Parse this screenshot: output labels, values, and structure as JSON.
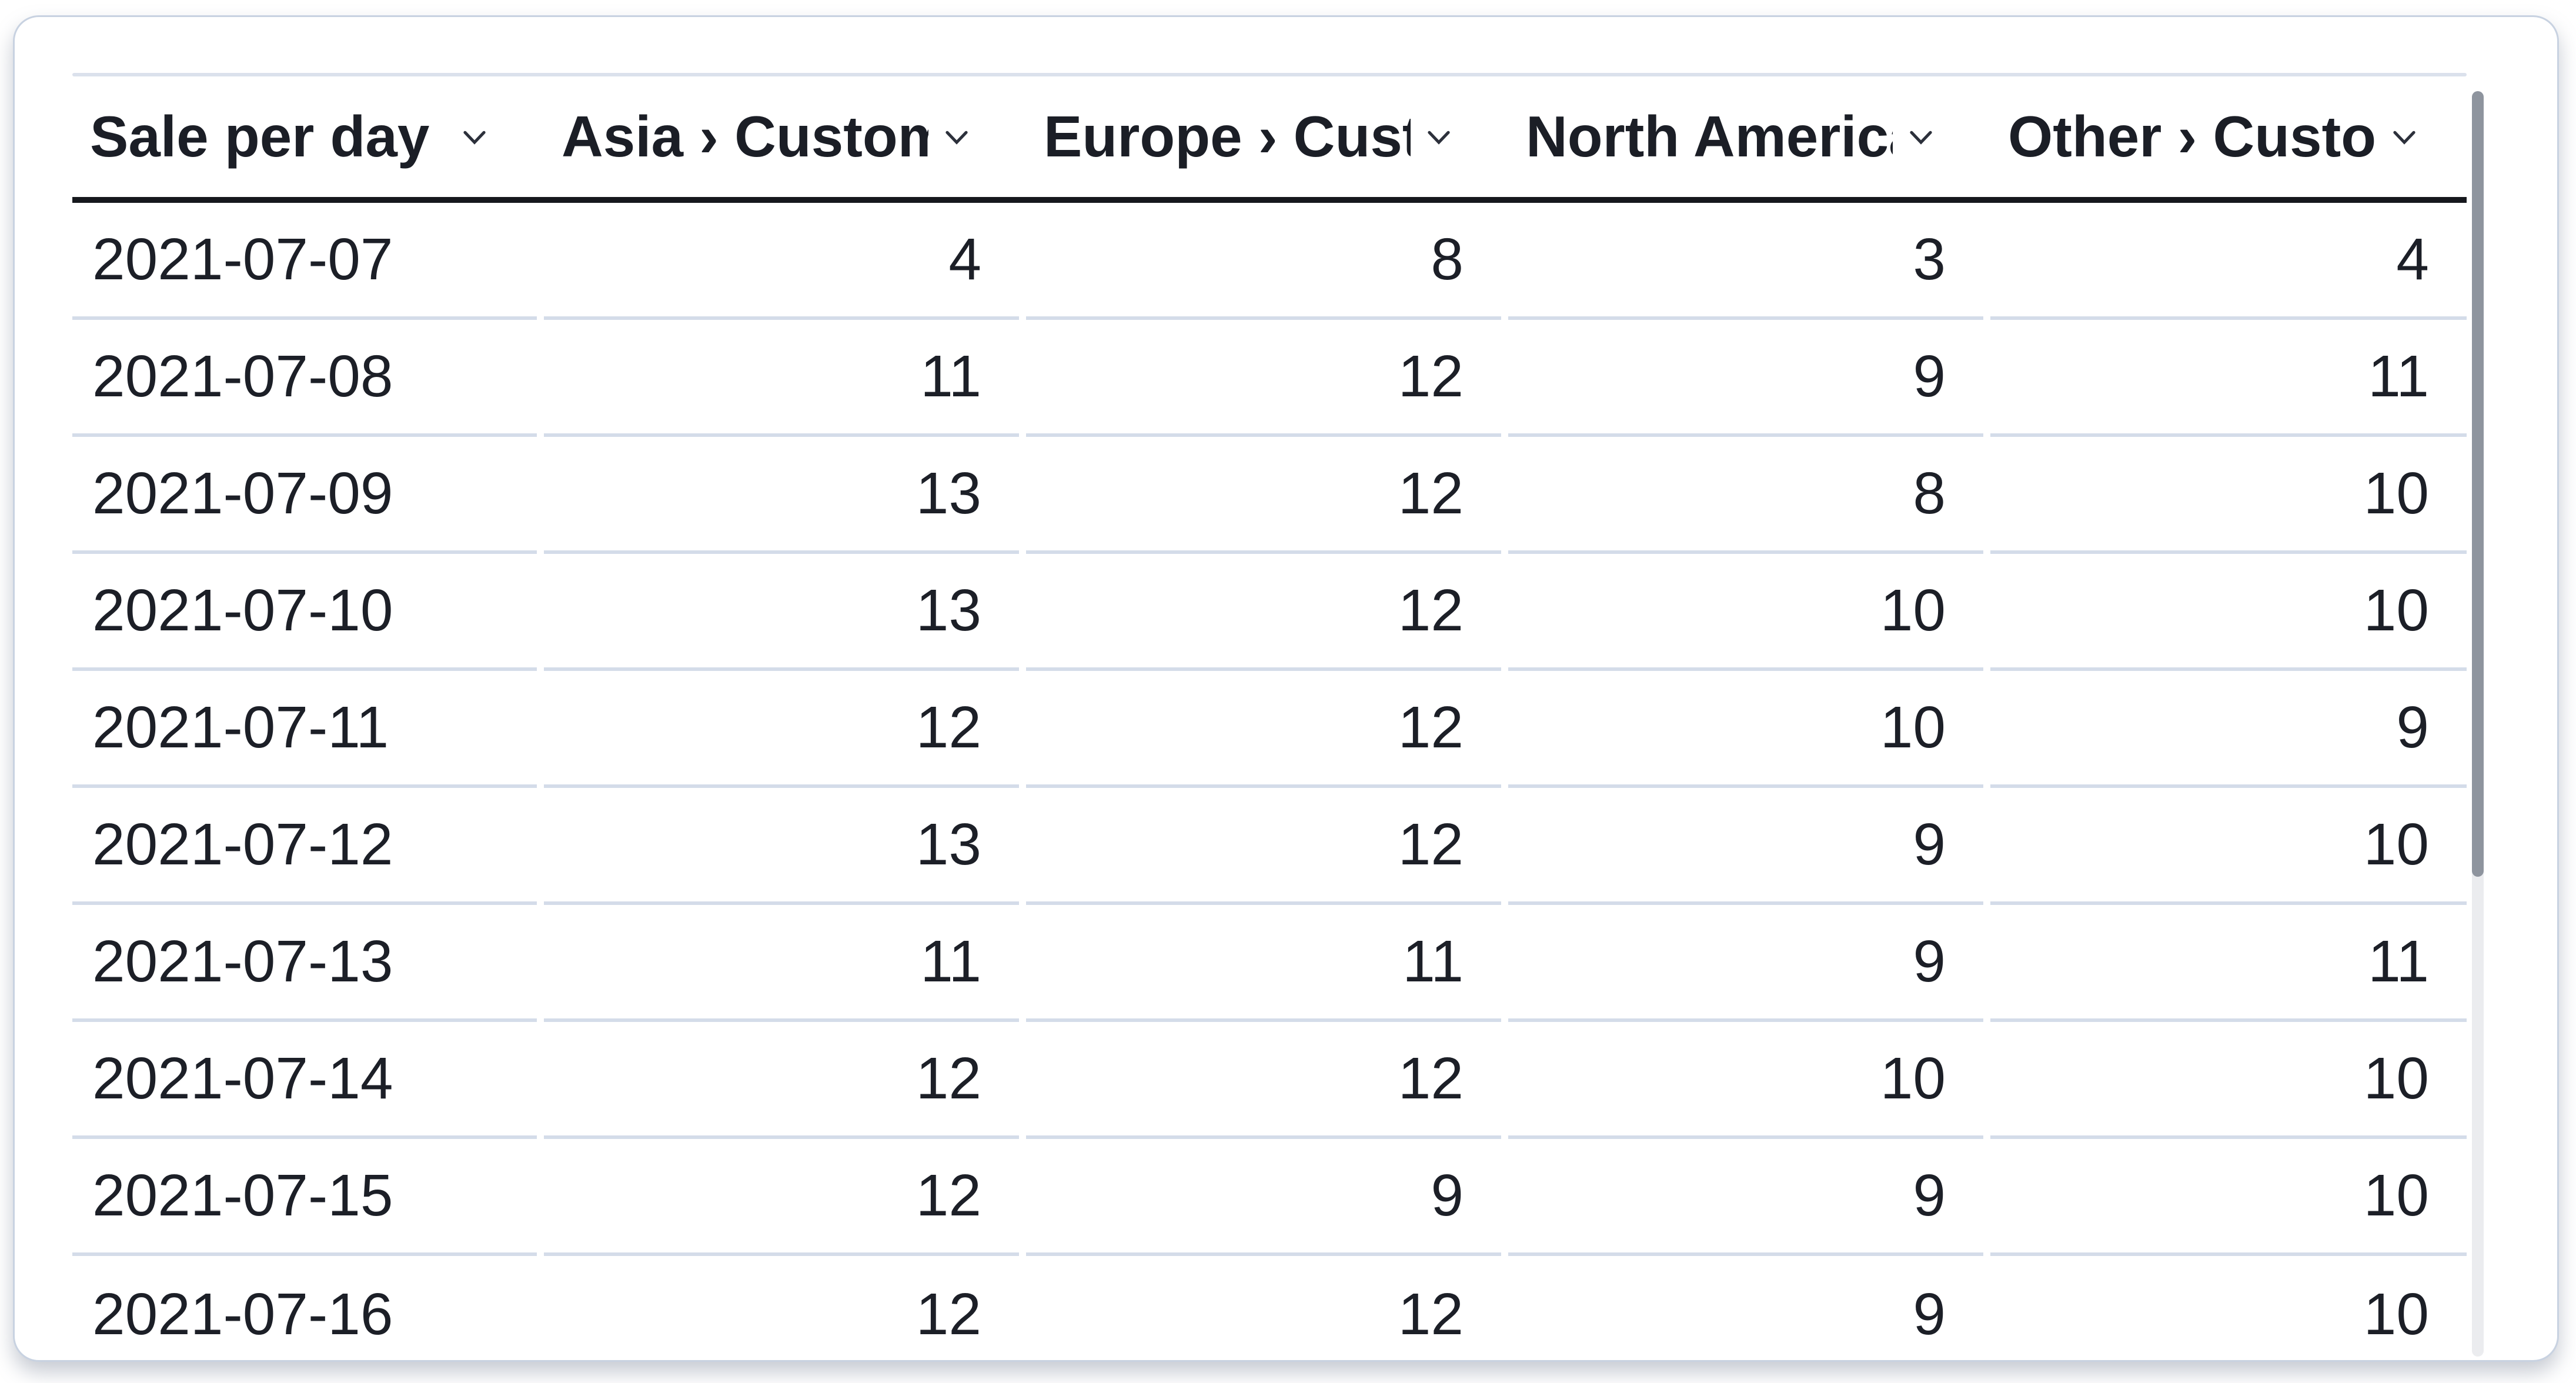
{
  "panel": {
    "type": "data-grid-panel",
    "colors": {
      "background": "#ffffff",
      "card_border": "#c8d2e1",
      "top_rule": "#dbe1ec",
      "header_rule": "#16181d",
      "row_separator": "#d4dce9",
      "text": "#1c1f27",
      "scrollbar_thumb": "#8e949e",
      "scrollbar_track": "#ebecef"
    },
    "scrollbar": {
      "orientation": "vertical",
      "thumb_visible": true
    }
  },
  "table": {
    "columns": [
      {
        "id": "date",
        "label": "Sale per day",
        "align": "left",
        "icon": "chevron-down-icon"
      },
      {
        "id": "asia",
        "label": "Asia › Customers",
        "align": "right",
        "icon": "chevron-down-icon"
      },
      {
        "id": "europe",
        "label": "Europe › Customers",
        "align": "right",
        "icon": "chevron-down-icon"
      },
      {
        "id": "north-america",
        "label": "North America › Customers",
        "align": "right",
        "icon": "chevron-down-icon"
      },
      {
        "id": "other",
        "label": "Other › Customers",
        "align": "right",
        "icon": "chevron-down-icon"
      }
    ],
    "rows": [
      [
        "2021-07-07",
        "4",
        "8",
        "3",
        "4"
      ],
      [
        "2021-07-08",
        "11",
        "12",
        "9",
        "11"
      ],
      [
        "2021-07-09",
        "13",
        "12",
        "8",
        "10"
      ],
      [
        "2021-07-10",
        "13",
        "12",
        "10",
        "10"
      ],
      [
        "2021-07-11",
        "12",
        "12",
        "10",
        "9"
      ],
      [
        "2021-07-12",
        "13",
        "12",
        "9",
        "10"
      ],
      [
        "2021-07-13",
        "11",
        "11",
        "9",
        "11"
      ],
      [
        "2021-07-14",
        "12",
        "12",
        "10",
        "10"
      ],
      [
        "2021-07-15",
        "12",
        "9",
        "9",
        "10"
      ],
      [
        "2021-07-16",
        "12",
        "12",
        "9",
        "10"
      ]
    ]
  }
}
